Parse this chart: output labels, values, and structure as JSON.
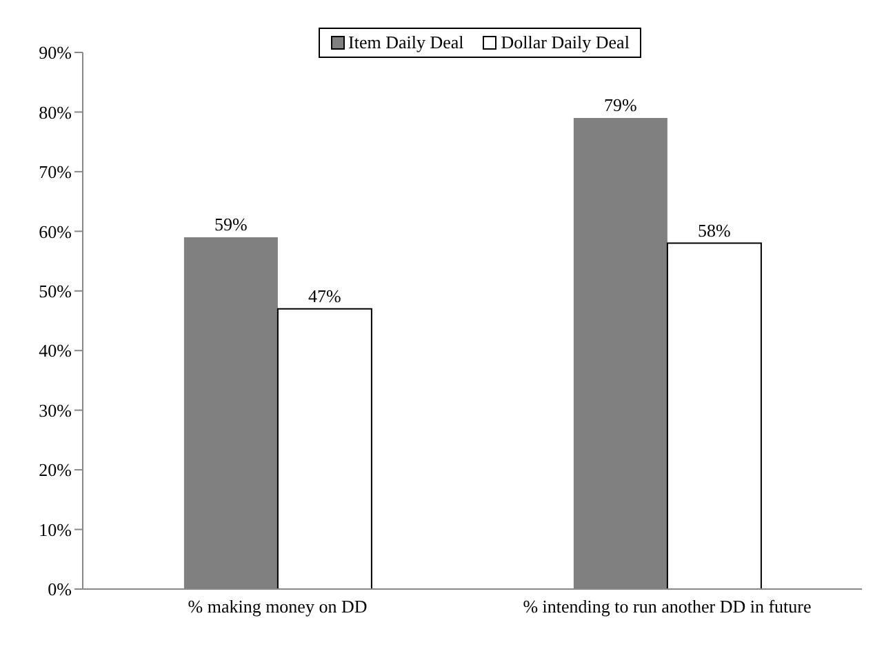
{
  "chart_data": {
    "type": "bar",
    "categories": [
      "% making money on DD",
      "% intending to run another DD in future"
    ],
    "series": [
      {
        "name": "Item Daily Deal",
        "color": "#808080",
        "values": [
          59,
          79
        ],
        "value_labels": [
          "59%",
          "79%"
        ]
      },
      {
        "name": "Dollar Daily Deal",
        "color": "#ffffff",
        "values": [
          47,
          58
        ],
        "value_labels": [
          "47%",
          "58%"
        ]
      }
    ],
    "ylim": [
      0,
      90
    ],
    "yticks": [
      {
        "value": 0,
        "label": "0%"
      },
      {
        "value": 10,
        "label": "10%"
      },
      {
        "value": 20,
        "label": "20%"
      },
      {
        "value": 30,
        "label": "30%"
      },
      {
        "value": 40,
        "label": "40%"
      },
      {
        "value": 50,
        "label": "50%"
      },
      {
        "value": 60,
        "label": "60%"
      },
      {
        "value": 70,
        "label": "70%"
      },
      {
        "value": 80,
        "label": "80%"
      },
      {
        "value": 90,
        "label": "90%"
      }
    ],
    "grid": false,
    "legend": "top"
  }
}
